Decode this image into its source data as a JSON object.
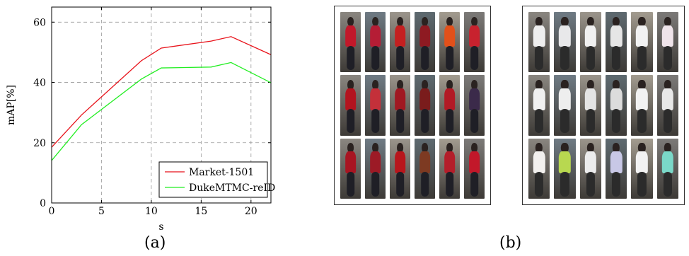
{
  "chart_data": {
    "type": "line",
    "xlabel": "s",
    "ylabel": "mAP[%]",
    "xlim": [
      0,
      22
    ],
    "ylim": [
      0,
      65
    ],
    "xticks": [
      0,
      5,
      10,
      15,
      20
    ],
    "yticks": [
      0,
      20,
      40,
      60
    ],
    "grid": true,
    "legend_position": "bottom-right",
    "series": [
      {
        "name": "Market-1501",
        "color": "#e8121a",
        "x": [
          0,
          3,
          9,
          11,
          16,
          18,
          22
        ],
        "y": [
          18.5,
          29.2,
          47.2,
          51.4,
          53.7,
          55.2,
          49.2
        ]
      },
      {
        "name": "DukeMTMC-reID",
        "color": "#22ee22",
        "x": [
          0,
          3,
          9,
          11,
          16,
          18,
          22
        ],
        "y": [
          14.1,
          26.0,
          41.1,
          44.8,
          45.1,
          46.6,
          39.9
        ]
      }
    ]
  },
  "captions": {
    "a": "(a)",
    "b": "(b)"
  },
  "panels": [
    {
      "name": "red-clothing-panel",
      "rows": [
        [
          "#c2182a",
          "#b51d35",
          "#c42020",
          "#8e1a22",
          "#e2501a",
          "#c8222e"
        ],
        [
          "#b3141f",
          "#c4303a",
          "#a01822",
          "#7a1c1c",
          "#b21a25",
          "#3b2a4a"
        ],
        [
          "#a81522",
          "#9c1a26",
          "#b8161c",
          "#7d3a22",
          "#b41e2a",
          "#c2182a"
        ]
      ]
    },
    {
      "name": "white-shirt-panel",
      "rows": [
        [
          "#eeeeee",
          "#e8e8ea",
          "#f0f0f0",
          "#e6e6e6",
          "#f2f2f2",
          "#efe4ea"
        ],
        [
          "#f0f0f0",
          "#eeeeee",
          "#e4e4e4",
          "#dcdcdc",
          "#f2f2f2",
          "#e8e8e8"
        ],
        [
          "#f2f0ee",
          "#b8d850",
          "#ececec",
          "#c8c8e6",
          "#f2f2f2",
          "#7ad8c8"
        ]
      ]
    }
  ]
}
